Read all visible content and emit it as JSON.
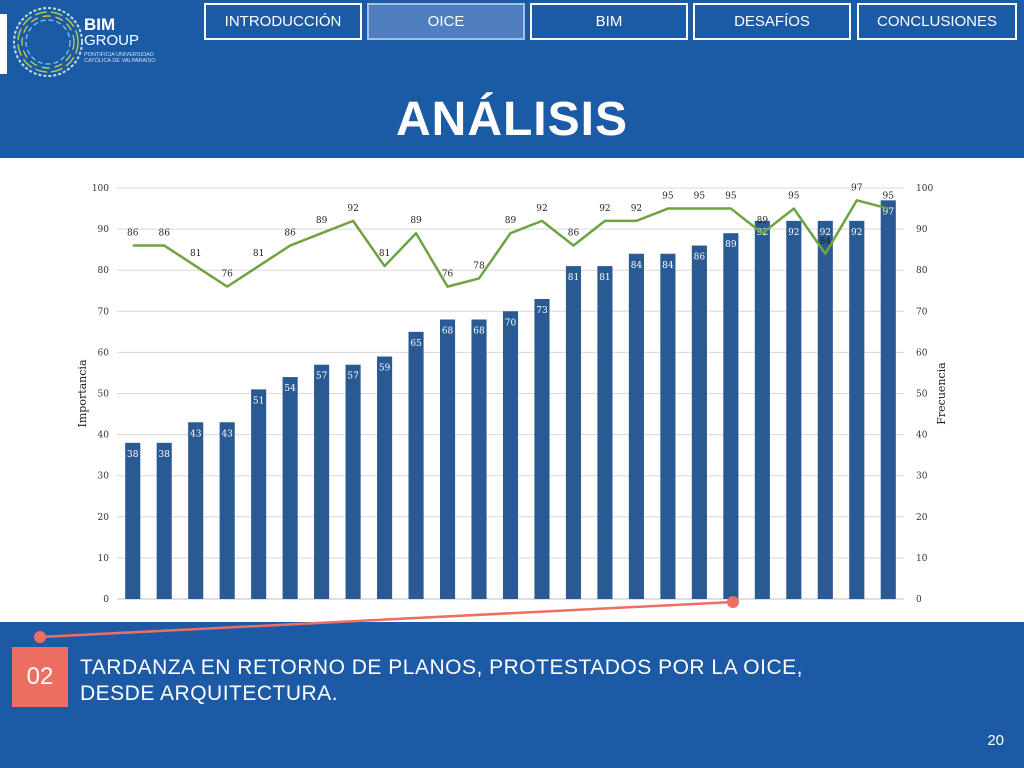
{
  "logo": {
    "name_line1": "BIM",
    "name_line2": "GROUP",
    "subtitle": "PONTIFICIA UNIVERSIDAD CATÓLICA DE VALPARAÍSO"
  },
  "nav": {
    "tabs": [
      {
        "label": "INTRODUCCIÓN",
        "active": false
      },
      {
        "label": "OICE",
        "active": true
      },
      {
        "label": "BIM",
        "active": false
      },
      {
        "label": "DESAFÍOS",
        "active": false
      },
      {
        "label": "CONCLUSIONES",
        "active": false
      }
    ]
  },
  "title": "ANÁLISIS",
  "colors": {
    "background": "#1b5aa5",
    "bar": "#2a5a93",
    "line": "#6ea33f",
    "accent": "#ec6f62"
  },
  "chart_data": {
    "type": "bar",
    "ylabel_left": "Importancia",
    "ylabel_right": "Frecuencia",
    "ylim": [
      0,
      100
    ],
    "yticks": [
      0,
      10,
      20,
      30,
      40,
      50,
      60,
      70,
      80,
      90,
      100
    ],
    "grid": true,
    "series": [
      {
        "type": "bar",
        "axis": "left",
        "values": [
          38,
          38,
          43,
          43,
          51,
          54,
          57,
          57,
          59,
          65,
          68,
          68,
          70,
          73,
          81,
          81,
          84,
          84,
          86,
          89,
          92,
          92,
          92,
          92,
          97
        ]
      },
      {
        "type": "line",
        "axis": "right",
        "values": [
          86,
          86,
          81,
          76,
          81,
          86,
          89,
          92,
          81,
          89,
          76,
          78,
          89,
          92,
          86,
          92,
          92,
          95,
          95,
          95,
          89,
          95,
          84,
          97,
          95
        ]
      }
    ],
    "highlight_index": 19
  },
  "callout": {
    "number": "02",
    "text_line1": "TARDANZA EN RETORNO DE PLANOS, PROTESTADOS POR LA OICE,",
    "text_line2": "DESDE ARQUITECTURA."
  },
  "page_number": "20"
}
